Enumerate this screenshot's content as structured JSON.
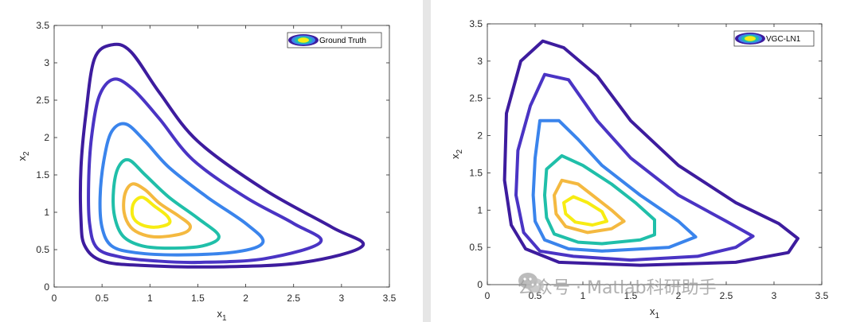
{
  "colors": {
    "levels": [
      "#3d1c9e",
      "#4a34c4",
      "#3a84ec",
      "#20bfa9",
      "#f4b940",
      "#f7ec13"
    ],
    "axis": "#262626"
  },
  "watermark": {
    "text": "公众号 · Matlab科研助手",
    "icon": "wechat-icon"
  },
  "chart_data": [
    {
      "type": "contour",
      "title": "",
      "xlabel": "x",
      "xlabel_sub": "1",
      "ylabel": "x",
      "ylabel_sub": "2",
      "xlim": [
        0,
        3.5
      ],
      "ylim": [
        0,
        3.5
      ],
      "xticks": [
        0,
        0.5,
        1,
        1.5,
        2,
        2.5,
        3,
        3.5
      ],
      "yticks": [
        0,
        0.5,
        1,
        1.5,
        2,
        2.5,
        3,
        3.5
      ],
      "xtick_labels": [
        "0",
        "0.5",
        "1",
        "1.5",
        "2",
        "2.5",
        "3",
        "3.5"
      ],
      "ytick_labels": [
        "0",
        "0.5",
        "1",
        "1.5",
        "2",
        "2.5",
        "3",
        "3.5"
      ],
      "legend": {
        "label": "Ground Truth",
        "position": "top-right"
      },
      "series": [
        {
          "name": "level-1",
          "points": [
            [
              1.75,
              0.27
            ],
            [
              2.6,
              0.33
            ],
            [
              3.22,
              0.55
            ],
            [
              2.9,
              0.8
            ],
            [
              2.2,
              1.3
            ],
            [
              1.5,
              1.95
            ],
            [
              1.1,
              2.6
            ],
            [
              0.8,
              3.15
            ],
            [
              0.6,
              3.24
            ],
            [
              0.42,
              3.05
            ],
            [
              0.33,
              2.3
            ],
            [
              0.28,
              1.6
            ],
            [
              0.28,
              0.9
            ],
            [
              0.32,
              0.55
            ],
            [
              0.5,
              0.35
            ],
            [
              0.9,
              0.29
            ]
          ]
        },
        {
          "name": "level-2",
          "points": [
            [
              1.5,
              0.33
            ],
            [
              2.2,
              0.38
            ],
            [
              2.78,
              0.6
            ],
            [
              2.5,
              0.85
            ],
            [
              2.0,
              1.2
            ],
            [
              1.45,
              1.7
            ],
            [
              1.1,
              2.25
            ],
            [
              0.82,
              2.65
            ],
            [
              0.62,
              2.78
            ],
            [
              0.47,
              2.55
            ],
            [
              0.39,
              2.0
            ],
            [
              0.36,
              1.4
            ],
            [
              0.37,
              0.85
            ],
            [
              0.45,
              0.52
            ],
            [
              0.7,
              0.4
            ],
            [
              1.05,
              0.35
            ]
          ]
        },
        {
          "name": "level-3",
          "points": [
            [
              1.3,
              0.43
            ],
            [
              1.9,
              0.47
            ],
            [
              2.18,
              0.6
            ],
            [
              2.0,
              0.85
            ],
            [
              1.6,
              1.2
            ],
            [
              1.2,
              1.6
            ],
            [
              0.95,
              1.95
            ],
            [
              0.75,
              2.18
            ],
            [
              0.6,
              2.08
            ],
            [
              0.52,
              1.7
            ],
            [
              0.48,
              1.2
            ],
            [
              0.5,
              0.8
            ],
            [
              0.6,
              0.55
            ],
            [
              0.85,
              0.46
            ]
          ]
        },
        {
          "name": "level-4",
          "points": [
            [
              1.2,
              0.52
            ],
            [
              1.55,
              0.55
            ],
            [
              1.72,
              0.68
            ],
            [
              1.5,
              0.92
            ],
            [
              1.2,
              1.2
            ],
            [
              0.95,
              1.5
            ],
            [
              0.78,
              1.7
            ],
            [
              0.67,
              1.6
            ],
            [
              0.62,
              1.3
            ],
            [
              0.63,
              0.95
            ],
            [
              0.72,
              0.68
            ],
            [
              0.92,
              0.55
            ]
          ]
        },
        {
          "name": "level-5",
          "points": [
            [
              1.1,
              0.67
            ],
            [
              1.35,
              0.72
            ],
            [
              1.42,
              0.82
            ],
            [
              1.3,
              0.95
            ],
            [
              1.1,
              1.12
            ],
            [
              0.95,
              1.3
            ],
            [
              0.82,
              1.38
            ],
            [
              0.74,
              1.25
            ],
            [
              0.73,
              1.0
            ],
            [
              0.8,
              0.8
            ],
            [
              0.93,
              0.7
            ]
          ]
        },
        {
          "name": "level-6",
          "points": [
            [
              1.05,
              0.8
            ],
            [
              1.2,
              0.85
            ],
            [
              1.18,
              0.95
            ],
            [
              1.05,
              1.08
            ],
            [
              0.92,
              1.2
            ],
            [
              0.83,
              1.12
            ],
            [
              0.82,
              0.95
            ],
            [
              0.9,
              0.84
            ]
          ]
        }
      ]
    },
    {
      "type": "contour",
      "title": "",
      "xlabel": "x",
      "xlabel_sub": "1",
      "ylabel": "x",
      "ylabel_sub": "2",
      "xlim": [
        0,
        3.5
      ],
      "ylim": [
        0,
        3.5
      ],
      "xticks": [
        0,
        0.5,
        1,
        1.5,
        2,
        2.5,
        3,
        3.5
      ],
      "yticks": [
        0,
        0.5,
        1,
        1.5,
        2,
        2.5,
        3,
        3.5
      ],
      "xtick_labels": [
        "0",
        "0.5",
        "1",
        "1.5",
        "2",
        "2.5",
        "3",
        "3.5"
      ],
      "ytick_labels": [
        "0",
        "0.5",
        "1",
        "1.5",
        "2",
        "2.5",
        "3",
        "3.5"
      ],
      "legend": {
        "label": "VGC-LN1",
        "position": "top-right"
      },
      "series": [
        {
          "name": "level-1",
          "points": [
            [
              1.6,
              0.26
            ],
            [
              2.6,
              0.3
            ],
            [
              3.15,
              0.43
            ],
            [
              3.25,
              0.62
            ],
            [
              3.05,
              0.82
            ],
            [
              2.6,
              1.1
            ],
            [
              2.0,
              1.6
            ],
            [
              1.5,
              2.2
            ],
            [
              1.15,
              2.8
            ],
            [
              0.8,
              3.18
            ],
            [
              0.58,
              3.27
            ],
            [
              0.35,
              3.0
            ],
            [
              0.2,
              2.3
            ],
            [
              0.18,
              1.4
            ],
            [
              0.25,
              0.8
            ],
            [
              0.4,
              0.48
            ],
            [
              0.75,
              0.3
            ]
          ]
        },
        {
          "name": "level-2",
          "points": [
            [
              1.5,
              0.33
            ],
            [
              2.2,
              0.38
            ],
            [
              2.6,
              0.5
            ],
            [
              2.78,
              0.65
            ],
            [
              2.5,
              0.85
            ],
            [
              2.0,
              1.2
            ],
            [
              1.5,
              1.7
            ],
            [
              1.15,
              2.2
            ],
            [
              0.85,
              2.75
            ],
            [
              0.6,
              2.82
            ],
            [
              0.45,
              2.4
            ],
            [
              0.32,
              1.8
            ],
            [
              0.3,
              1.2
            ],
            [
              0.38,
              0.7
            ],
            [
              0.55,
              0.45
            ],
            [
              0.9,
              0.38
            ]
          ]
        },
        {
          "name": "level-3",
          "points": [
            [
              1.2,
              0.45
            ],
            [
              1.9,
              0.5
            ],
            [
              2.18,
              0.64
            ],
            [
              2.0,
              0.85
            ],
            [
              1.6,
              1.2
            ],
            [
              1.2,
              1.6
            ],
            [
              0.95,
              1.95
            ],
            [
              0.75,
              2.2
            ],
            [
              0.55,
              2.2
            ],
            [
              0.5,
              1.7
            ],
            [
              0.48,
              1.2
            ],
            [
              0.5,
              0.85
            ],
            [
              0.6,
              0.6
            ],
            [
              0.85,
              0.48
            ]
          ]
        },
        {
          "name": "level-4",
          "points": [
            [
              1.2,
              0.55
            ],
            [
              1.6,
              0.6
            ],
            [
              1.75,
              0.67
            ],
            [
              1.75,
              0.87
            ],
            [
              1.55,
              1.1
            ],
            [
              1.3,
              1.35
            ],
            [
              1.0,
              1.6
            ],
            [
              0.78,
              1.73
            ],
            [
              0.62,
              1.55
            ],
            [
              0.6,
              1.2
            ],
            [
              0.62,
              0.9
            ],
            [
              0.7,
              0.68
            ],
            [
              0.95,
              0.57
            ]
          ]
        },
        {
          "name": "level-5",
          "points": [
            [
              1.05,
              0.7
            ],
            [
              1.3,
              0.75
            ],
            [
              1.43,
              0.85
            ],
            [
              1.3,
              1.0
            ],
            [
              1.1,
              1.2
            ],
            [
              0.95,
              1.35
            ],
            [
              0.78,
              1.4
            ],
            [
              0.7,
              1.2
            ],
            [
              0.72,
              0.95
            ],
            [
              0.82,
              0.78
            ]
          ]
        },
        {
          "name": "level-6",
          "points": [
            [
              1.1,
              0.8
            ],
            [
              1.25,
              0.85
            ],
            [
              1.2,
              0.98
            ],
            [
              1.05,
              1.1
            ],
            [
              0.9,
              1.18
            ],
            [
              0.8,
              1.1
            ],
            [
              0.82,
              0.95
            ],
            [
              0.92,
              0.84
            ]
          ]
        }
      ]
    }
  ]
}
